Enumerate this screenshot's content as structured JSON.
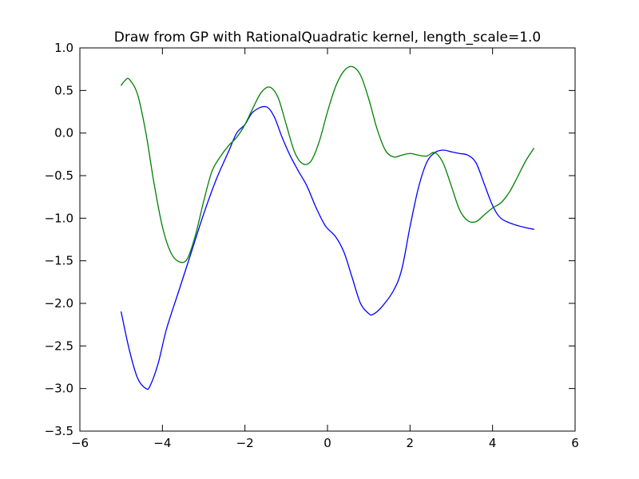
{
  "chart_data": {
    "type": "line",
    "title": "Draw from GP with RationalQuadratic kernel, length_scale=1.0",
    "xlabel": "",
    "ylabel": "",
    "xlim": [
      -6,
      6
    ],
    "ylim": [
      -3.5,
      1.0
    ],
    "xticks": [
      -6,
      -4,
      -2,
      0,
      2,
      4,
      6
    ],
    "xtick_labels": [
      "−6",
      "−4",
      "−2",
      "0",
      "2",
      "4",
      "6"
    ],
    "yticks": [
      1.0,
      0.5,
      0.0,
      -0.5,
      -1.0,
      -1.5,
      -2.0,
      -2.5,
      -3.0,
      -3.5
    ],
    "ytick_labels": [
      "1.0",
      "0.5",
      "0.0",
      "−0.5",
      "−1.0",
      "−1.5",
      "−2.0",
      "−2.5",
      "−3.0",
      "−3.5"
    ],
    "grid": false,
    "series": [
      {
        "color": "#0000ff",
        "points": [
          [
            -5.0,
            -2.1
          ],
          [
            -4.8,
            -2.55
          ],
          [
            -4.6,
            -2.88
          ],
          [
            -4.4,
            -3.0
          ],
          [
            -4.3,
            -2.97
          ],
          [
            -4.1,
            -2.7
          ],
          [
            -3.9,
            -2.3
          ],
          [
            -3.6,
            -1.85
          ],
          [
            -3.3,
            -1.4
          ],
          [
            -3.0,
            -0.95
          ],
          [
            -2.7,
            -0.55
          ],
          [
            -2.4,
            -0.22
          ],
          [
            -2.2,
            0.0
          ],
          [
            -2.0,
            0.1
          ],
          [
            -1.8,
            0.25
          ],
          [
            -1.5,
            0.31
          ],
          [
            -1.3,
            0.2
          ],
          [
            -1.1,
            -0.05
          ],
          [
            -0.9,
            -0.27
          ],
          [
            -0.7,
            -0.45
          ],
          [
            -0.5,
            -0.62
          ],
          [
            -0.3,
            -0.85
          ],
          [
            -0.1,
            -1.05
          ],
          [
            0.0,
            -1.12
          ],
          [
            0.2,
            -1.22
          ],
          [
            0.4,
            -1.4
          ],
          [
            0.6,
            -1.7
          ],
          [
            0.8,
            -2.0
          ],
          [
            1.0,
            -2.12
          ],
          [
            1.1,
            -2.13
          ],
          [
            1.3,
            -2.05
          ],
          [
            1.6,
            -1.85
          ],
          [
            1.8,
            -1.6
          ],
          [
            2.0,
            -1.1
          ],
          [
            2.2,
            -0.65
          ],
          [
            2.4,
            -0.35
          ],
          [
            2.6,
            -0.23
          ],
          [
            2.8,
            -0.2
          ],
          [
            3.0,
            -0.22
          ],
          [
            3.2,
            -0.24
          ],
          [
            3.4,
            -0.26
          ],
          [
            3.6,
            -0.35
          ],
          [
            3.8,
            -0.6
          ],
          [
            4.0,
            -0.85
          ],
          [
            4.2,
            -1.0
          ],
          [
            4.5,
            -1.07
          ],
          [
            4.8,
            -1.11
          ],
          [
            5.0,
            -1.13
          ]
        ]
      },
      {
        "color": "#008000",
        "points": [
          [
            -5.0,
            0.56
          ],
          [
            -4.9,
            0.62
          ],
          [
            -4.8,
            0.63
          ],
          [
            -4.6,
            0.45
          ],
          [
            -4.4,
            0.0
          ],
          [
            -4.2,
            -0.6
          ],
          [
            -4.0,
            -1.1
          ],
          [
            -3.8,
            -1.4
          ],
          [
            -3.6,
            -1.51
          ],
          [
            -3.4,
            -1.48
          ],
          [
            -3.2,
            -1.2
          ],
          [
            -3.0,
            -0.8
          ],
          [
            -2.8,
            -0.45
          ],
          [
            -2.6,
            -0.28
          ],
          [
            -2.4,
            -0.15
          ],
          [
            -2.2,
            -0.05
          ],
          [
            -2.0,
            0.1
          ],
          [
            -1.8,
            0.3
          ],
          [
            -1.6,
            0.48
          ],
          [
            -1.4,
            0.54
          ],
          [
            -1.2,
            0.42
          ],
          [
            -1.0,
            0.1
          ],
          [
            -0.8,
            -0.22
          ],
          [
            -0.6,
            -0.36
          ],
          [
            -0.4,
            -0.33
          ],
          [
            -0.2,
            -0.1
          ],
          [
            0.0,
            0.25
          ],
          [
            0.2,
            0.55
          ],
          [
            0.4,
            0.73
          ],
          [
            0.6,
            0.78
          ],
          [
            0.8,
            0.68
          ],
          [
            1.0,
            0.4
          ],
          [
            1.2,
            0.05
          ],
          [
            1.4,
            -0.2
          ],
          [
            1.6,
            -0.28
          ],
          [
            1.8,
            -0.26
          ],
          [
            2.0,
            -0.24
          ],
          [
            2.2,
            -0.26
          ],
          [
            2.4,
            -0.27
          ],
          [
            2.6,
            -0.23
          ],
          [
            2.8,
            -0.35
          ],
          [
            3.0,
            -0.62
          ],
          [
            3.2,
            -0.9
          ],
          [
            3.4,
            -1.03
          ],
          [
            3.6,
            -1.04
          ],
          [
            3.8,
            -0.96
          ],
          [
            4.0,
            -0.88
          ],
          [
            4.2,
            -0.82
          ],
          [
            4.4,
            -0.7
          ],
          [
            4.6,
            -0.52
          ],
          [
            4.8,
            -0.33
          ],
          [
            5.0,
            -0.18
          ]
        ]
      }
    ]
  }
}
